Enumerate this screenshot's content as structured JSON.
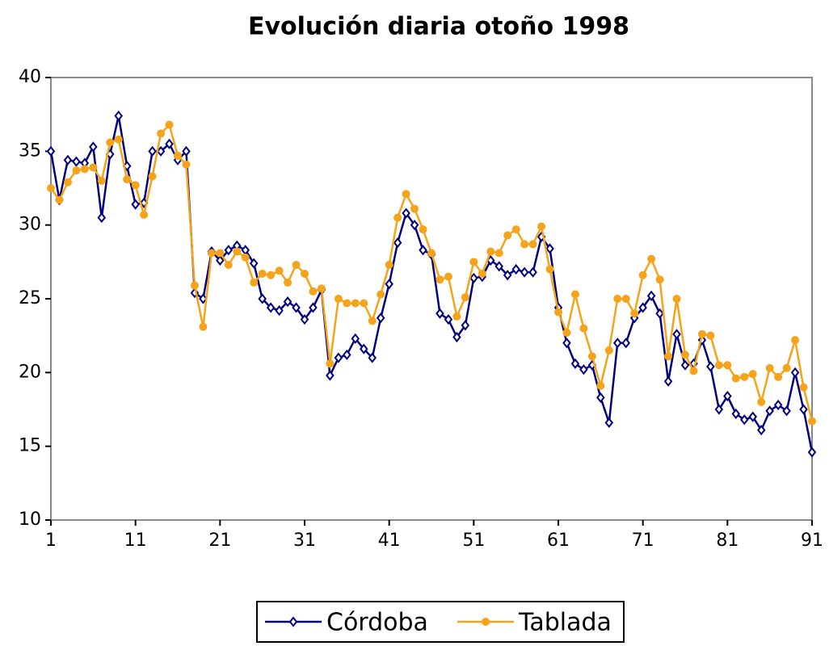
{
  "chart_data": {
    "type": "line",
    "title": "Evolución diaria otoño 1998",
    "x": [
      1,
      2,
      3,
      4,
      5,
      6,
      7,
      8,
      9,
      10,
      11,
      12,
      13,
      14,
      15,
      16,
      17,
      18,
      19,
      20,
      21,
      22,
      23,
      24,
      25,
      26,
      27,
      28,
      29,
      30,
      31,
      32,
      33,
      34,
      35,
      36,
      37,
      38,
      39,
      40,
      41,
      42,
      43,
      44,
      45,
      46,
      47,
      48,
      49,
      50,
      51,
      52,
      53,
      54,
      55,
      56,
      57,
      58,
      59,
      60,
      61,
      62,
      63,
      64,
      65,
      66,
      67,
      68,
      69,
      70,
      71,
      72,
      73,
      74,
      75,
      76,
      77,
      78,
      79,
      80,
      81,
      82,
      83,
      84,
      85,
      86,
      87,
      88,
      89,
      90,
      91
    ],
    "series": [
      {
        "name": "Córdoba",
        "color": "#000080",
        "marker": "diamond",
        "values": [
          35,
          31.7,
          34.4,
          34.3,
          34.2,
          35.3,
          30.5,
          34.8,
          37.4,
          34,
          31.4,
          31.5,
          35,
          35,
          35.5,
          34.4,
          35,
          25.4,
          25,
          28.2,
          27.6,
          28.3,
          28.6,
          28.3,
          27.4,
          25,
          24.4,
          24.2,
          24.8,
          24.4,
          23.6,
          24.4,
          25.6,
          19.8,
          21,
          21.2,
          22.3,
          21.6,
          21,
          23.7,
          26,
          28.8,
          30.8,
          30,
          28.3,
          28,
          24,
          23.6,
          22.4,
          23.2,
          26.4,
          26.5,
          27.6,
          27.2,
          26.6,
          27,
          26.8,
          26.8,
          29.2,
          28.4,
          24.4,
          22,
          20.6,
          20.2,
          20.5,
          18.3,
          16.6,
          22,
          22,
          23.7,
          24.4,
          25.2,
          24,
          19.4,
          22.6,
          20.5,
          20.6,
          22.2,
          20.4,
          17.5,
          18.4,
          17.2,
          16.8,
          17,
          16.1,
          17.4,
          17.8,
          17.4,
          20,
          17.5,
          14.6
        ]
      },
      {
        "name": "Tablada",
        "color": "#f5a31a",
        "marker": "circle",
        "values": [
          32.5,
          31.7,
          32.9,
          33.7,
          33.8,
          33.9,
          33,
          35.6,
          35.8,
          33.1,
          32.7,
          30.7,
          33.3,
          36.2,
          36.8,
          34.7,
          34.1,
          25.9,
          23.1,
          28.1,
          28.1,
          27.3,
          28.2,
          27.8,
          26.1,
          26.7,
          26.6,
          26.9,
          26.1,
          27.3,
          26.7,
          25.5,
          25.7,
          20.6,
          25,
          24.7,
          24.7,
          24.7,
          23.5,
          25.3,
          27.3,
          30.5,
          32.1,
          31.1,
          29.7,
          28.1,
          26.3,
          26.5,
          23.8,
          25.1,
          27.5,
          26.7,
          28.2,
          28.1,
          29.3,
          29.7,
          28.7,
          28.7,
          29.9,
          27,
          24.1,
          22.7,
          25.3,
          23,
          21.1,
          19.1,
          21.5,
          25,
          25,
          24,
          26.6,
          27.7,
          26.3,
          21.1,
          25,
          21.2,
          20.1,
          22.6,
          22.5,
          20.5,
          20.5,
          19.6,
          19.7,
          19.9,
          18,
          20.3,
          19.7,
          20.3,
          22.2,
          19,
          16.7
        ]
      }
    ],
    "xlim": [
      1,
      91
    ],
    "xticks": [
      1,
      11,
      21,
      31,
      41,
      51,
      61,
      71,
      81,
      91
    ],
    "ylim": [
      10,
      40
    ],
    "yticks": [
      10,
      15,
      20,
      25,
      30,
      35,
      40
    ],
    "legend": "bottom"
  }
}
